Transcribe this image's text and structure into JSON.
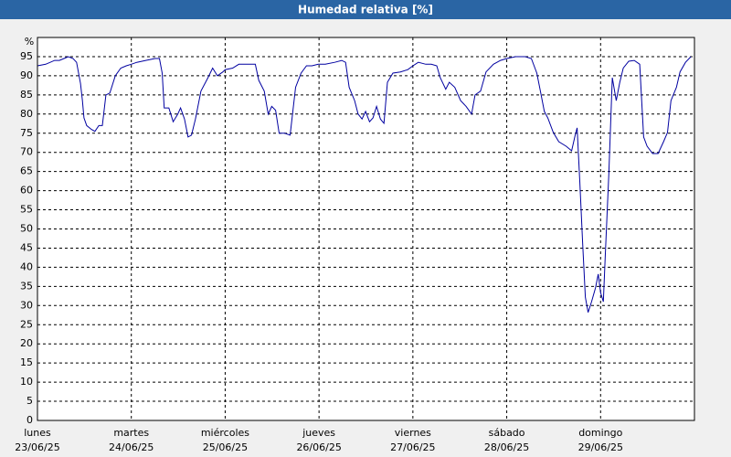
{
  "chart_data": {
    "type": "line",
    "title": "Humedad relativa [%]",
    "y_label": "%",
    "color": "#0000a0",
    "grid": true,
    "xlim": [
      0,
      168
    ],
    "ylim": [
      0,
      100
    ],
    "xticks": [
      {
        "value": 0,
        "label": "lunes",
        "date": "23/06/25"
      },
      {
        "value": 24,
        "label": "martes",
        "date": "24/06/25"
      },
      {
        "value": 48,
        "label": "miércoles",
        "date": "25/06/25"
      },
      {
        "value": 72,
        "label": "jueves",
        "date": "26/06/25"
      },
      {
        "value": 96,
        "label": "viernes",
        "date": "27/06/25"
      },
      {
        "value": 120,
        "label": "sábado",
        "date": "28/06/25"
      },
      {
        "value": 144,
        "label": "domingo",
        "date": "29/06/25"
      }
    ],
    "yticks": [
      0,
      5,
      10,
      15,
      20,
      25,
      30,
      35,
      40,
      45,
      50,
      55,
      60,
      65,
      70,
      75,
      80,
      85,
      90,
      95
    ],
    "x": [
      0,
      2.1,
      4.4,
      5.6,
      6.8,
      7.9,
      9.1,
      10.0,
      11.0,
      11.5,
      11.9,
      12.6,
      13.8,
      14.7,
      15.7,
      16.6,
      17.5,
      18.5,
      19.9,
      21.3,
      22.7,
      24,
      25.4,
      27.7,
      30.1,
      31.2,
      31.9,
      32.4,
      33.6,
      34.7,
      35.9,
      36.6,
      37.6,
      38.5,
      39.4,
      40.4,
      41.8,
      43.6,
      44.8,
      46.0,
      47.4,
      48,
      49.9,
      51.5,
      53.4,
      55.7,
      56.6,
      58.0,
      59.0,
      59.9,
      60.9,
      61.8,
      63.2,
      64.6,
      66.0,
      67.4,
      68.8,
      70.2,
      71.8,
      72,
      73.6,
      76.0,
      77.8,
      78.8,
      79.7,
      81.1,
      82.0,
      83.0,
      83.9,
      84.9,
      85.8,
      86.7,
      87.7,
      88.6,
      89.5,
      90.9,
      92.8,
      94.7,
      96,
      97.4,
      99.3,
      100.7,
      102.1,
      103.0,
      104.4,
      105.3,
      106.7,
      108.2,
      109.6,
      111.0,
      111.9,
      113.3,
      114.7,
      116.6,
      118.4,
      120,
      122.3,
      124.7,
      126.3,
      127.7,
      128.6,
      129.6,
      130.5,
      131.9,
      133.3,
      135.2,
      136.6,
      137.5,
      138.0,
      138.7,
      139.4,
      140.1,
      140.8,
      141.7,
      142.7,
      143.4,
      144,
      144.7,
      145.2,
      146.1,
      147.0,
      148.0,
      148.9,
      149.8,
      151.2,
      152.6,
      154.0,
      155.0,
      155.9,
      157.3,
      158.7,
      160.1,
      161.1,
      162.0,
      163.4,
      164.3,
      165.7,
      167.1
    ],
    "series": [
      {
        "name": "Humedad relativa",
        "color": "#0000a0",
        "values": [
          92.6,
          93,
          94,
          94,
          94.5,
          95,
          94.5,
          93.5,
          88,
          83.5,
          79,
          77,
          76,
          75.5,
          77,
          77,
          85,
          85.5,
          90,
          92,
          92.6,
          93,
          93.5,
          94,
          94.5,
          94.5,
          90.7,
          81.6,
          81.6,
          78,
          80,
          81.6,
          78.7,
          74,
          74.5,
          78.7,
          86,
          89.5,
          92,
          90,
          91,
          91.6,
          92,
          93,
          93,
          93,
          88.8,
          86,
          80,
          82,
          81,
          75,
          75,
          74.5,
          87,
          90.7,
          92.6,
          92.6,
          93,
          93,
          93,
          93.5,
          94,
          93.5,
          87,
          83.5,
          80,
          78.7,
          80.7,
          78,
          79,
          82,
          78.7,
          77.6,
          88.3,
          90.7,
          91,
          91.6,
          92.6,
          93.5,
          93,
          93,
          92.6,
          89.5,
          86.5,
          88.3,
          87,
          83.5,
          82,
          80,
          85,
          86,
          91,
          93,
          94,
          94.5,
          95,
          95,
          94.5,
          90.7,
          86,
          80.7,
          79,
          75.2,
          72.8,
          71.6,
          70.4,
          74.5,
          76.4,
          62,
          46.5,
          32.2,
          28.2,
          31,
          34.6,
          38.2,
          33.4,
          31,
          43,
          64.4,
          89.5,
          83.5,
          88.3,
          92,
          93.8,
          94,
          93,
          74,
          71.6,
          69.7,
          69.7,
          72.8,
          75.2,
          83.5,
          87,
          91,
          93.5,
          95
        ]
      }
    ]
  }
}
